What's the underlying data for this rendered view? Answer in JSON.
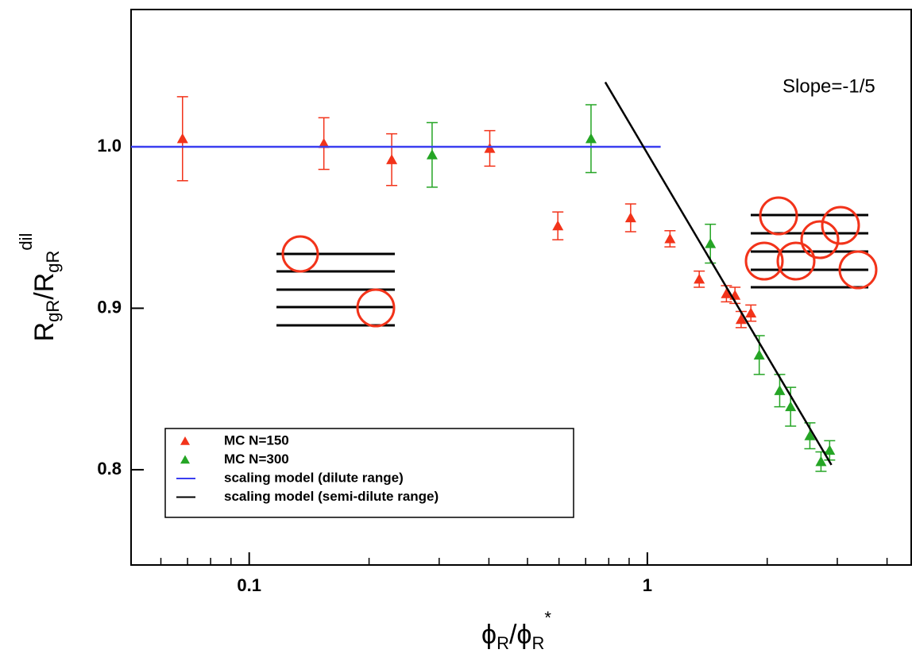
{
  "chart_data": {
    "type": "scatter",
    "xlabel_parts": [
      "ϕ",
      "R",
      "/ϕ",
      "R",
      "*"
    ],
    "ylabel_parts": [
      "R",
      "gR",
      "/R",
      "gR",
      "dil"
    ],
    "annotation": "Slope=-1/5",
    "xscale": "log",
    "xlim": [
      0.0505,
      4.6
    ],
    "ylim": [
      0.741,
      1.085
    ],
    "xticks": [
      0.1,
      1
    ],
    "xminor_ticks": [
      0.06,
      0.07,
      0.08,
      0.09,
      0.2,
      0.3,
      0.4,
      0.5,
      0.6,
      0.7,
      0.8,
      0.9,
      2,
      3,
      4
    ],
    "yticks": [
      0.8,
      0.9,
      {
        "value": 1,
        "label": "1.0"
      }
    ],
    "grid": false,
    "legend": "lower left",
    "series": [
      {
        "name": "MC N=150",
        "type": "scatter",
        "color": "#f2331a",
        "x": [
          0.068,
          0.154,
          0.228,
          0.402,
          0.596,
          0.908,
          1.14,
          1.35,
          1.58,
          1.66,
          1.72,
          1.82
        ],
        "values": [
          1.005,
          1.002,
          0.992,
          0.999,
          0.951,
          0.956,
          0.943,
          0.918,
          0.909,
          0.908,
          0.893,
          0.897
        ],
        "errors": [
          0.026,
          0.016,
          0.016,
          0.011,
          0.0086,
          0.0086,
          0.005,
          0.005,
          0.005,
          0.005,
          0.005,
          0.005
        ]
      },
      {
        "name": "MC N=300",
        "type": "scatter",
        "color": "#25a525",
        "x": [
          0.288,
          0.722,
          1.44,
          1.91,
          2.15,
          2.29,
          2.56,
          2.73,
          2.87
        ],
        "values": [
          0.995,
          1.005,
          0.94,
          0.871,
          0.849,
          0.839,
          0.821,
          0.805,
          0.812
        ],
        "errors": [
          0.02,
          0.021,
          0.012,
          0.012,
          0.01,
          0.012,
          0.008,
          0.006,
          0.006
        ]
      },
      {
        "name": "scaling model (dilute range)",
        "type": "line",
        "color": "#3a3ef0",
        "x": [
          0.0505,
          1.08
        ],
        "values": [
          1,
          1
        ]
      },
      {
        "name": "scaling model (semi-dilute range)",
        "type": "line",
        "color": "#000000",
        "x": [
          0.784,
          2.9
        ],
        "values": [
          1.04,
          0.803
        ]
      }
    ]
  }
}
